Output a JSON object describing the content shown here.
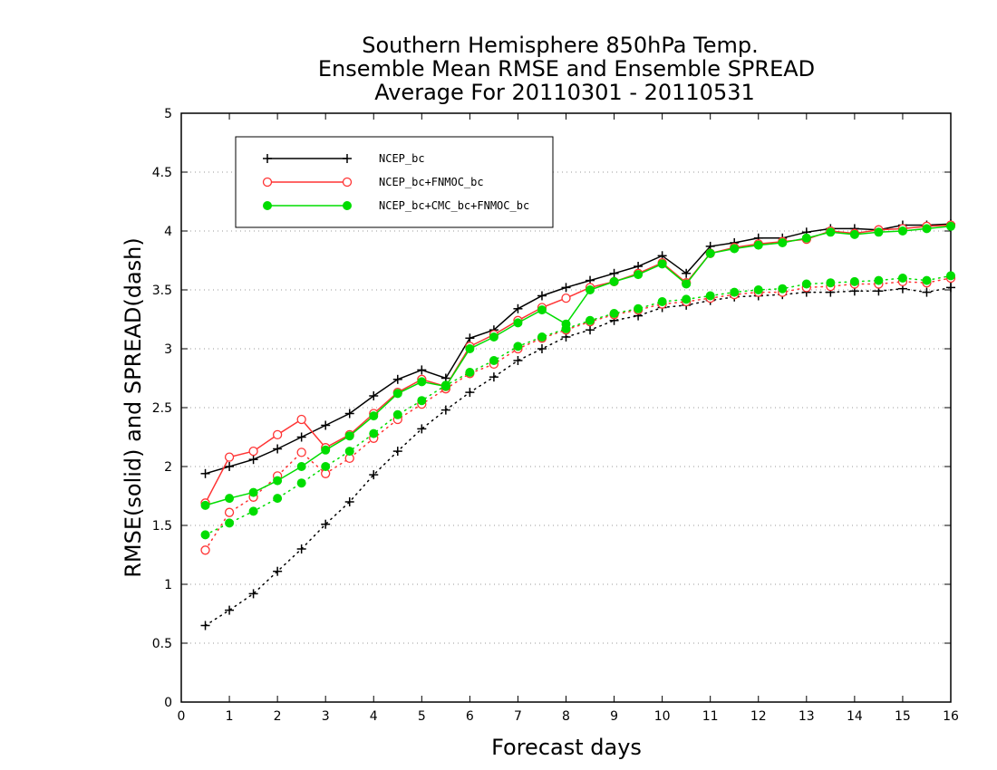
{
  "chart_data": {
    "type": "line",
    "title": [
      "Southern Hemisphere 850hPa Temp.",
      "Ensemble Mean RMSE and Ensemble SPREAD",
      "Average For 20110301 - 20110531"
    ],
    "xlabel": "Forecast days",
    "ylabel": "RMSE(solid) and SPREAD(dash)",
    "xlim": [
      0,
      16
    ],
    "ylim": [
      0,
      5
    ],
    "x_ticks": [
      0,
      1,
      2,
      3,
      4,
      5,
      6,
      7,
      8,
      9,
      10,
      11,
      12,
      13,
      14,
      15,
      16
    ],
    "y_ticks": [
      0,
      0.5,
      1,
      1.5,
      2,
      2.5,
      3,
      3.5,
      4,
      4.5,
      5
    ],
    "grid": "horizontal dotted",
    "legend_position": "top-left",
    "x": [
      0.5,
      1,
      1.5,
      2,
      2.5,
      3,
      3.5,
      4,
      4.5,
      5,
      5.5,
      6,
      6.5,
      7,
      7.5,
      8,
      8.5,
      9,
      9.5,
      10,
      10.5,
      11,
      11.5,
      12,
      12.5,
      13,
      13.5,
      14,
      14.5,
      15,
      15.5,
      16
    ],
    "series": [
      {
        "name": "NCEP_bc",
        "color": "#000000",
        "marker": "plus",
        "rmse": [
          1.94,
          2.0,
          2.06,
          2.15,
          2.25,
          2.35,
          2.45,
          2.6,
          2.74,
          2.82,
          2.75,
          3.09,
          3.16,
          3.34,
          3.45,
          3.52,
          3.58,
          3.64,
          3.7,
          3.79,
          3.64,
          3.87,
          3.9,
          3.94,
          3.94,
          3.99,
          4.02,
          4.02,
          4.01,
          4.05,
          4.05,
          4.06
        ],
        "spread": [
          0.65,
          0.78,
          0.92,
          1.11,
          1.3,
          1.51,
          1.7,
          1.93,
          2.13,
          2.32,
          2.48,
          2.63,
          2.76,
          2.9,
          3.0,
          3.1,
          3.16,
          3.24,
          3.28,
          3.35,
          3.37,
          3.41,
          3.44,
          3.45,
          3.46,
          3.48,
          3.48,
          3.49,
          3.49,
          3.51,
          3.48,
          3.52
        ]
      },
      {
        "name": "NCEP_bc+FNMOC_bc",
        "color": "#ff3333",
        "marker": "open-circle",
        "rmse": [
          1.69,
          2.08,
          2.13,
          2.27,
          2.4,
          2.16,
          2.27,
          2.45,
          2.63,
          2.74,
          2.68,
          3.02,
          3.12,
          3.24,
          3.35,
          3.43,
          3.52,
          3.57,
          3.64,
          3.73,
          3.56,
          3.81,
          3.86,
          3.89,
          3.91,
          3.93,
          4.0,
          3.98,
          4.01,
          4.02,
          4.04,
          4.05
        ],
        "spread": [
          1.29,
          1.61,
          1.74,
          1.92,
          2.12,
          1.94,
          2.07,
          2.24,
          2.4,
          2.53,
          2.66,
          2.79,
          2.87,
          3.0,
          3.09,
          3.16,
          3.23,
          3.29,
          3.33,
          3.38,
          3.4,
          3.43,
          3.46,
          3.48,
          3.48,
          3.52,
          3.53,
          3.55,
          3.55,
          3.57,
          3.56,
          3.6
        ]
      },
      {
        "name": "NCEP_bc+CMC_bc+FNMOC_bc",
        "color": "#00dd00",
        "marker": "filled-circle",
        "rmse": [
          1.67,
          1.73,
          1.78,
          1.88,
          2.0,
          2.14,
          2.26,
          2.43,
          2.62,
          2.72,
          2.68,
          3.0,
          3.1,
          3.22,
          3.33,
          3.21,
          3.5,
          3.57,
          3.63,
          3.72,
          3.55,
          3.81,
          3.85,
          3.88,
          3.9,
          3.94,
          3.99,
          3.97,
          3.99,
          4.0,
          4.02,
          4.04
        ],
        "spread": [
          1.42,
          1.52,
          1.62,
          1.73,
          1.86,
          2.0,
          2.13,
          2.28,
          2.44,
          2.56,
          2.69,
          2.8,
          2.9,
          3.02,
          3.1,
          3.17,
          3.24,
          3.3,
          3.34,
          3.4,
          3.42,
          3.45,
          3.48,
          3.5,
          3.51,
          3.55,
          3.56,
          3.57,
          3.58,
          3.6,
          3.58,
          3.62
        ]
      }
    ]
  }
}
